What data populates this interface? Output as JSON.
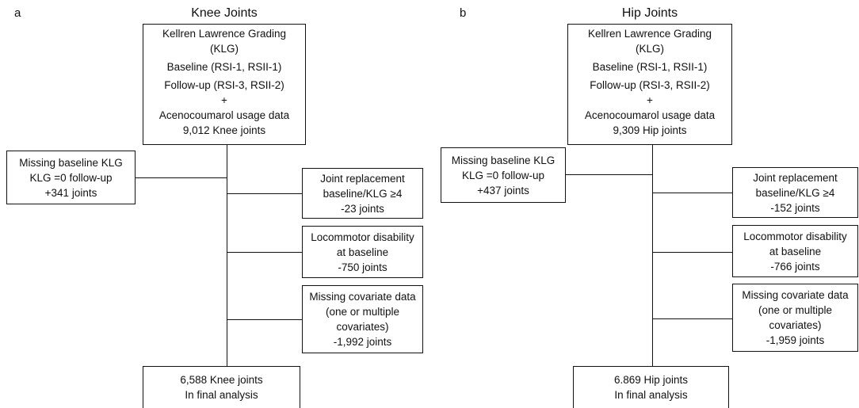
{
  "panels": [
    {
      "label": "a",
      "title": "Knee Joints",
      "start": [
        "Kellren Lawrence Grading",
        "(KLG)",
        "Baseline (RSI-1, RSII-1)",
        "Follow-up (RSI-3, RSII-2)",
        "+",
        "Acenocoumarol usage data",
        "9,012 Knee joints"
      ],
      "added": [
        "Missing baseline KLG",
        "KLG =0 follow-up",
        "+341 joints"
      ],
      "exclusions": [
        [
          "Joint replacement",
          "baseline/KLG ≥4",
          "-23 joints"
        ],
        [
          "Locommotor disability",
          "at baseline",
          "-750 joints"
        ],
        [
          "Missing covariate data",
          "(one or multiple",
          "covariates)",
          "-1,992 joints"
        ]
      ],
      "final": [
        "6,588 Knee joints",
        "In final analysis"
      ]
    },
    {
      "label": "b",
      "title": "Hip Joints",
      "start": [
        "Kellren Lawrence Grading",
        "(KLG)",
        "Baseline (RSI-1, RSII-1)",
        "Follow-up (RSI-3, RSII-2)",
        "+",
        "Acenocoumarol usage data",
        "9,309 Hip joints"
      ],
      "added": [
        "Missing baseline KLG",
        "KLG =0 follow-up",
        "+437 joints"
      ],
      "exclusions": [
        [
          "Joint replacement",
          "baseline/KLG ≥4",
          "-152 joints"
        ],
        [
          "Locommotor disability",
          "at baseline",
          "-766 joints"
        ],
        [
          "Missing covariate data",
          "(one or multiple",
          "covariates)",
          "-1,959 joints"
        ]
      ],
      "final": [
        "6.869 Hip joints",
        "In final analysis"
      ]
    }
  ]
}
